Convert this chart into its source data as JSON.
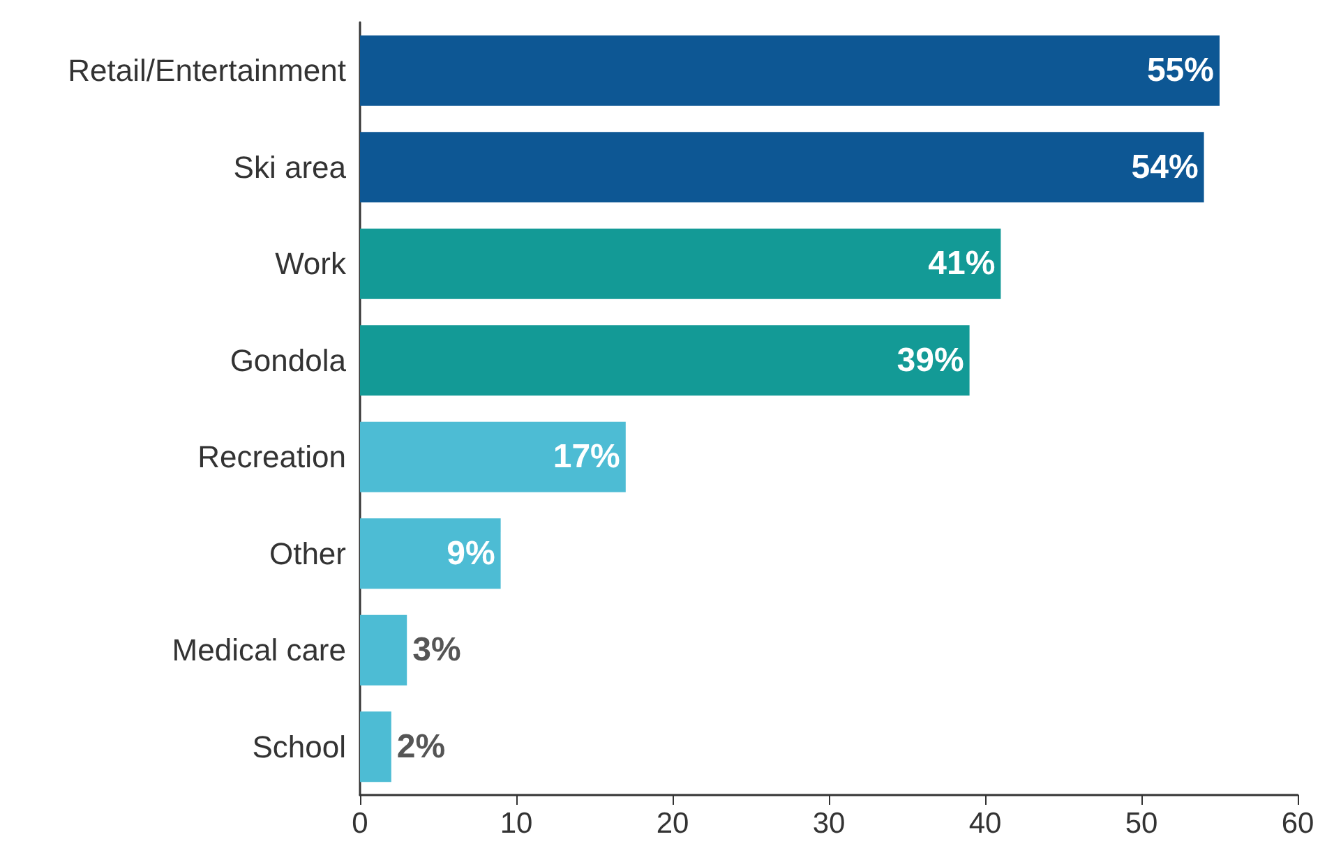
{
  "chart_data": {
    "type": "bar",
    "orientation": "horizontal",
    "categories": [
      "Retail/Entertainment",
      "Ski area",
      "Work",
      "Gondola",
      "Recreation",
      "Other",
      "Medical care",
      "School"
    ],
    "values": [
      55,
      54,
      41,
      39,
      17,
      9,
      3,
      2
    ],
    "colors": [
      "#0d5794",
      "#0d5794",
      "#139a96",
      "#139a96",
      "#4dbcd4",
      "#4dbcd4",
      "#4dbcd4",
      "#4dbcd4"
    ],
    "value_labels": [
      "55%",
      "54%",
      "41%",
      "39%",
      "17%",
      "9%",
      "3%",
      "2%"
    ],
    "xlim": [
      0,
      60
    ],
    "xticks": [
      0,
      10,
      20,
      30,
      40,
      50,
      60
    ]
  }
}
